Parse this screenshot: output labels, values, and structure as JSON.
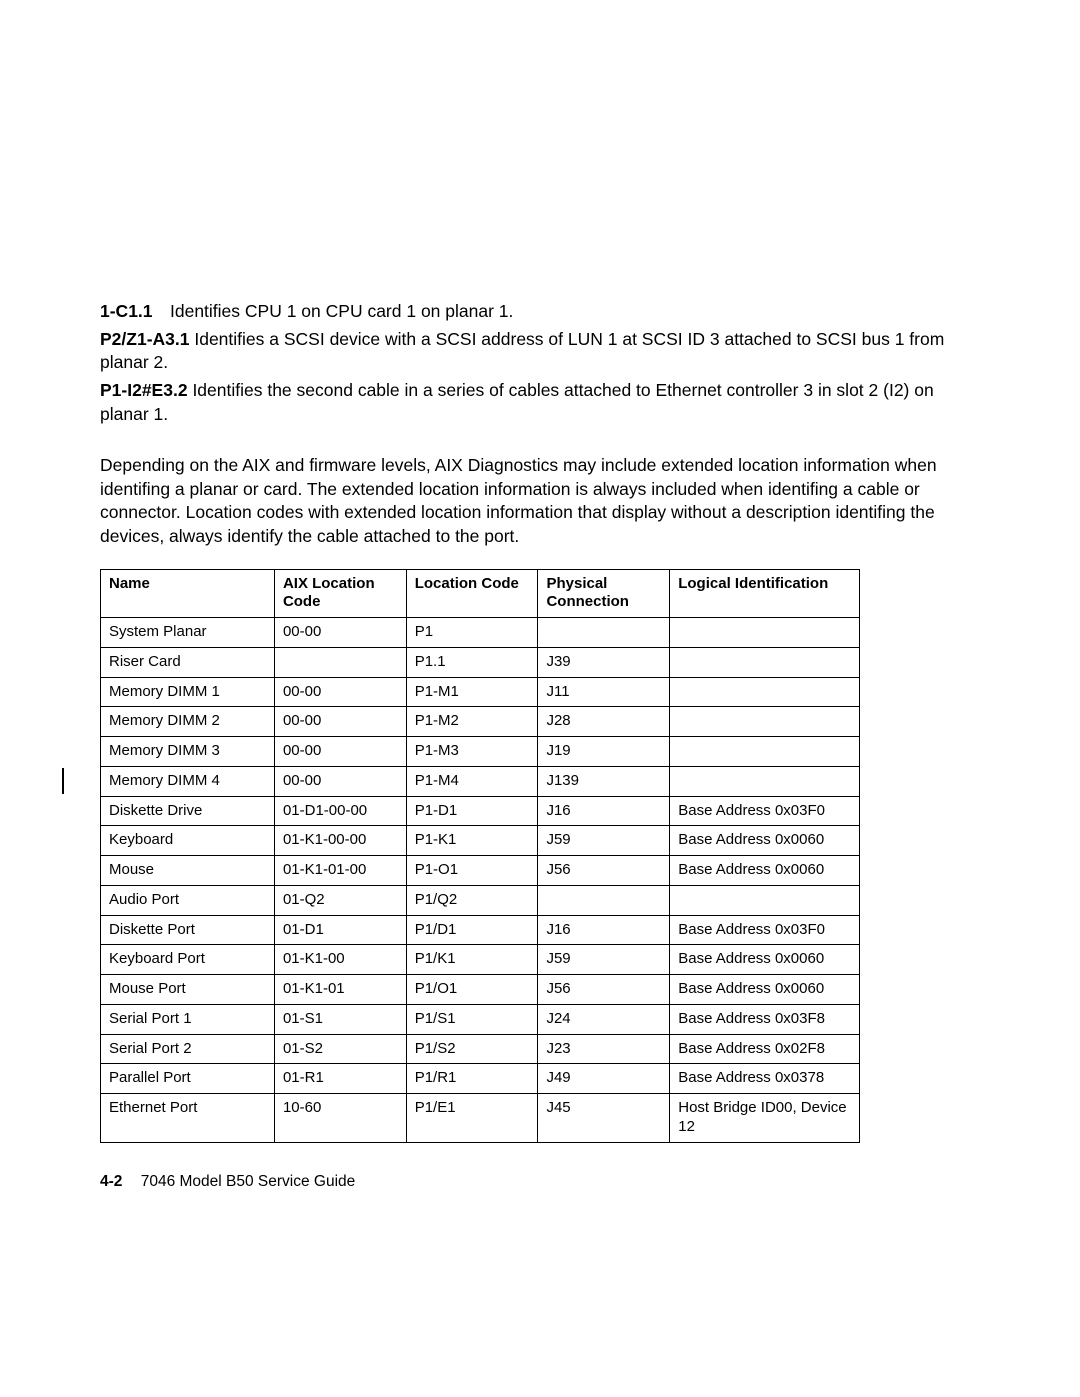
{
  "definitions": [
    {
      "term": "1-C1.1",
      "body": "Identifies CPU 1 on CPU card 1 on planar 1."
    },
    {
      "term": "P2/Z1-A3.1",
      "body": "Identifies a SCSI device with a SCSI address of LUN 1 at SCSI ID 3 attached to SCSI bus 1 from planar 2."
    },
    {
      "term": "P1-I2#E3.2",
      "body": "Identifies the second cable in a series of cables attached to Ethernet controller 3 in slot 2 (I2) on planar 1."
    }
  ],
  "paragraph": "Depending on the AIX and firmware levels, AIX Diagnostics may include extended location information when identifing a planar or card.  The extended location information is always included when identifing a cable or connector.  Location codes with extended location information that display without a description identifing the devices, always identify the cable attached to the port.",
  "table": {
    "columns": [
      "Name",
      "AIX Location Code",
      "Location Code",
      "Physical Connection",
      "Logical Identification"
    ],
    "rows": [
      [
        "System Planar",
        "00-00",
        "P1",
        "",
        ""
      ],
      [
        "Riser Card",
        "",
        "P1.1",
        "J39",
        ""
      ],
      [
        "Memory DIMM 1",
        "00-00",
        "P1-M1",
        "J11",
        ""
      ],
      [
        "Memory DIMM 2",
        "00-00",
        "P1-M2",
        "J28",
        ""
      ],
      [
        "Memory DIMM 3",
        "00-00",
        "P1-M3",
        "J19",
        ""
      ],
      [
        "Memory DIMM 4",
        "00-00",
        "P1-M4",
        "J139",
        ""
      ],
      [
        "Diskette Drive",
        "01-D1-00-00",
        "P1-D1",
        "J16",
        "Base Address 0x03F0"
      ],
      [
        "Keyboard",
        "01-K1-00-00",
        "P1-K1",
        "J59",
        "Base Address 0x0060"
      ],
      [
        "Mouse",
        "01-K1-01-00",
        "P1-O1",
        "J56",
        "Base Address 0x0060"
      ],
      [
        "Audio Port",
        "01-Q2",
        "P1/Q2",
        "",
        ""
      ],
      [
        "Diskette Port",
        "01-D1",
        "P1/D1",
        "J16",
        "Base Address 0x03F0"
      ],
      [
        "Keyboard Port",
        "01-K1-00",
        "P1/K1",
        "J59",
        "Base Address 0x0060"
      ],
      [
        "Mouse Port",
        "01-K1-01",
        "P1/O1",
        "J56",
        "Base Address 0x0060"
      ],
      [
        "Serial Port 1",
        "01-S1",
        "P1/S1",
        "J24",
        "Base Address 0x03F8"
      ],
      [
        "Serial Port 2",
        "01-S2",
        "P1/S2",
        "J23",
        "Base Address 0x02F8"
      ],
      [
        "Parallel Port",
        "01-R1",
        "P1/R1",
        "J49",
        "Base Address 0x0378"
      ],
      [
        "Ethernet Port",
        "10-60",
        "P1/E1",
        "J45",
        "Host Bridge ID00, Device 12"
      ]
    ],
    "revbar_row_index": 5
  },
  "footer": {
    "page": "4-2",
    "title": "7046 Model B50 Service Guide"
  }
}
